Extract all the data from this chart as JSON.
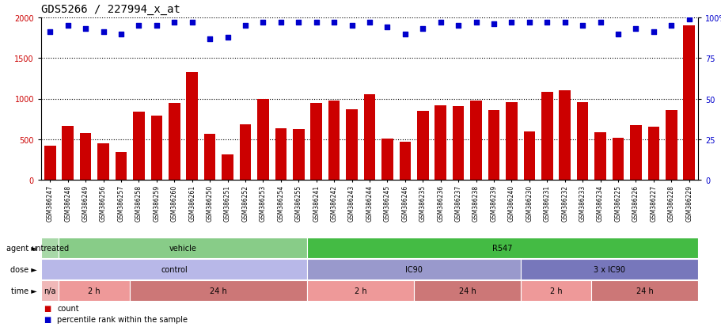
{
  "title": "GDS5266 / 227994_x_at",
  "samples": [
    "GSM386247",
    "GSM386248",
    "GSM386249",
    "GSM386256",
    "GSM386257",
    "GSM386258",
    "GSM386259",
    "GSM386260",
    "GSM386261",
    "GSM386250",
    "GSM386251",
    "GSM386252",
    "GSM386253",
    "GSM386254",
    "GSM386255",
    "GSM386241",
    "GSM386242",
    "GSM386243",
    "GSM386244",
    "GSM386245",
    "GSM386246",
    "GSM386235",
    "GSM386236",
    "GSM386237",
    "GSM386238",
    "GSM386239",
    "GSM386240",
    "GSM386230",
    "GSM386231",
    "GSM386232",
    "GSM386233",
    "GSM386234",
    "GSM386225",
    "GSM386226",
    "GSM386227",
    "GSM386228",
    "GSM386229"
  ],
  "counts": [
    420,
    660,
    580,
    450,
    340,
    840,
    790,
    950,
    1330,
    570,
    310,
    680,
    1000,
    630,
    620,
    950,
    980,
    870,
    1050,
    510,
    470,
    845,
    920,
    910,
    975,
    860,
    960,
    595,
    1080,
    1100,
    960,
    585,
    520,
    670,
    650,
    860,
    1900
  ],
  "percentiles": [
    91,
    95,
    93,
    91,
    90,
    95,
    95,
    97,
    97,
    87,
    88,
    95,
    97,
    97,
    97,
    97,
    97,
    95,
    97,
    94,
    90,
    93,
    97,
    95,
    97,
    96,
    97,
    97,
    97,
    97,
    95,
    97,
    90,
    93,
    91,
    95,
    99
  ],
  "bar_color": "#cc0000",
  "dot_color": "#0000cc",
  "ylim_left": [
    0,
    2000
  ],
  "ylim_right": [
    0,
    100
  ],
  "yticks_left": [
    0,
    500,
    1000,
    1500,
    2000
  ],
  "yticks_right": [
    0,
    25,
    50,
    75,
    100
  ],
  "agent_groups": [
    {
      "label": "untreated",
      "start": 0,
      "end": 1,
      "color": "#a8d8a8"
    },
    {
      "label": "vehicle",
      "start": 1,
      "end": 15,
      "color": "#88cc88"
    },
    {
      "label": "R547",
      "start": 15,
      "end": 37,
      "color": "#44bb44"
    }
  ],
  "dose_groups": [
    {
      "label": "control",
      "start": 0,
      "end": 15,
      "color": "#b8b8e8"
    },
    {
      "label": "IC90",
      "start": 15,
      "end": 27,
      "color": "#9999cc"
    },
    {
      "label": "3 x IC90",
      "start": 27,
      "end": 37,
      "color": "#7777bb"
    }
  ],
  "time_groups": [
    {
      "label": "n/a",
      "start": 0,
      "end": 1,
      "color": "#f0b8b8"
    },
    {
      "label": "2 h",
      "start": 1,
      "end": 5,
      "color": "#ee9999"
    },
    {
      "label": "24 h",
      "start": 5,
      "end": 15,
      "color": "#cc7777"
    },
    {
      "label": "2 h",
      "start": 15,
      "end": 21,
      "color": "#ee9999"
    },
    {
      "label": "24 h",
      "start": 21,
      "end": 27,
      "color": "#cc7777"
    },
    {
      "label": "2 h",
      "start": 27,
      "end": 31,
      "color": "#ee9999"
    },
    {
      "label": "24 h",
      "start": 31,
      "end": 37,
      "color": "#cc7777"
    }
  ],
  "background_color": "#ffffff"
}
